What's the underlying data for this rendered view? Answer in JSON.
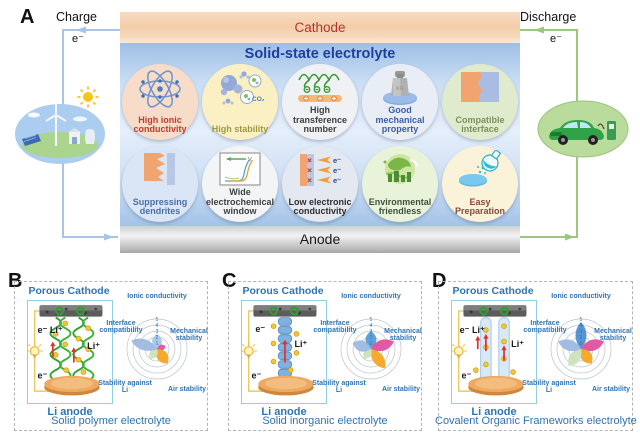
{
  "panelA": {
    "label": "A",
    "charge": {
      "label": "Charge",
      "electron": "e⁻"
    },
    "discharge": {
      "label": "Discharge",
      "electron": "e⁻"
    },
    "cathode_label": "Cathode",
    "electrolyte_title": "Solid-state electrolyte",
    "anode_label": "Anode",
    "colors": {
      "cathode_text": "#b5342a",
      "electrolyte_text": "#1e3f9e",
      "charge_wire": "#a9c4e6",
      "discharge_wire": "#9cc87e"
    },
    "features": [
      {
        "label": "High ionic conductivity",
        "icon": "atom-icon",
        "icon_text": "",
        "bg": "#f7dcc9",
        "text_color": "#c23b2e"
      },
      {
        "label": "High stability",
        "icon": "molecules-co2-icon",
        "icon_text": "CO₂",
        "bg": "#faf0c4",
        "text_color": "#9b9b3f"
      },
      {
        "label": "High transference number",
        "icon": "polymer-chain-icon",
        "icon_text": "",
        "bg": "#eff1f5",
        "text_color": "#3f3f3f"
      },
      {
        "label": "Good mechanical property",
        "icon": "weight-icon",
        "icon_text": "KG",
        "bg": "#e9edf5",
        "text_color": "#3a5fa8"
      },
      {
        "label": "Compatible interface",
        "icon": "interface-icon",
        "icon_text": "",
        "bg": "#e0ebce",
        "text_color": "#7d8f5e"
      },
      {
        "label": "Suppressing dendrites",
        "icon": "dendrite-icon",
        "icon_text": "",
        "bg": "#dae6f5",
        "text_color": "#4a6fa5"
      },
      {
        "label": "Wide electrochemical window",
        "icon": "cv-window-icon",
        "icon_text": "V",
        "bg": "#f2f4f6",
        "text_color": "#3f3f3f"
      },
      {
        "label": "Low electronic conductivity",
        "icon": "blocked-electrons-icon",
        "icon_text": "e⁻",
        "bg": "#e4e8f0",
        "text_color": "#2f2f2f"
      },
      {
        "label": "Environmental friendless",
        "icon": "green-earth-icon",
        "icon_text": "",
        "bg": "#e9f3da",
        "text_color": "#3f4f3f"
      },
      {
        "label": "Easy Preparation",
        "icon": "flask-icon",
        "icon_text": "",
        "bg": "#fbf2da",
        "text_color": "#8a4a3a"
      }
    ]
  },
  "panels": [
    {
      "label": "B",
      "cathode_label": "Porous Cathode",
      "anode_label": "Li anode",
      "caption": "Solid polymer electrolyte",
      "cell": {
        "type": "polymer",
        "top_label": "e⁻ Li⁺",
        "side_label": "Li⁺",
        "bottom_label": "e⁻"
      }
    },
    {
      "label": "C",
      "cathode_label": "Porous Cathode",
      "anode_label": "Li anode",
      "caption": "Solid inorganic electrolyte",
      "cell": {
        "type": "inorganic",
        "top_label": "e⁻",
        "side_label": "Li⁺",
        "bottom_label": "e⁻"
      }
    },
    {
      "label": "D",
      "cathode_label": "Porous Cathode",
      "anode_label": "Li anode",
      "caption": "Covalent Organic Frameworks electrolyte",
      "cell": {
        "type": "cof",
        "top_label": "e⁻ Li⁺",
        "side_label": "Li⁺",
        "bottom_label": "e⁻"
      }
    }
  ],
  "chart_data": [
    {
      "type": "radar",
      "panel": "B",
      "electrolyte": "Solid polymer electrolyte",
      "axes": [
        "Ionic conductivity",
        "Mechanical stability",
        "Air stability",
        "Stability against Li",
        "Interface compatibility"
      ],
      "values": [
        2.5,
        1.5,
        3,
        2,
        4.5
      ],
      "scale_max": 5,
      "scale_ticks": [
        5,
        4,
        3,
        2,
        1
      ],
      "petal_colors": [
        "#a9c9ea",
        "#e0519e",
        "#f5a623",
        "#cde2bd",
        "#9db8e2"
      ],
      "axis_label_color": "#2e74b5",
      "grid": "concentric-circles"
    },
    {
      "type": "radar",
      "panel": "C",
      "electrolyte": "Solid inorganic electrolyte",
      "axes": [
        "Ionic conductivity",
        "Mechanical stability",
        "Air stability",
        "Stability against Li",
        "Interface compatibility"
      ],
      "values": [
        3,
        4,
        4,
        2,
        3.2
      ],
      "scale_max": 5,
      "scale_ticks": [
        5,
        4,
        3,
        2,
        1
      ],
      "petal_colors": [
        "#5b9bd5",
        "#e0519e",
        "#f5a623",
        "#cde2bd",
        "#9db8e2"
      ],
      "axis_label_color": "#2e74b5",
      "grid": "concentric-circles"
    },
    {
      "type": "radar",
      "panel": "D",
      "electrolyte": "Covalent Organic Frameworks electrolyte",
      "axes": [
        "Ionic conductivity",
        "Mechanical stability",
        "Air stability",
        "Stability against Li",
        "Interface compatibility"
      ],
      "values": [
        4.5,
        4,
        3,
        3.5,
        4
      ],
      "scale_max": 5,
      "scale_ticks": [
        5,
        4,
        3,
        2,
        1
      ],
      "petal_colors": [
        "#4f8fd0",
        "#e0519e",
        "#f5a623",
        "#cde2bd",
        "#9db8e2"
      ],
      "axis_label_color": "#2e74b5",
      "grid": "concentric-circles"
    }
  ]
}
